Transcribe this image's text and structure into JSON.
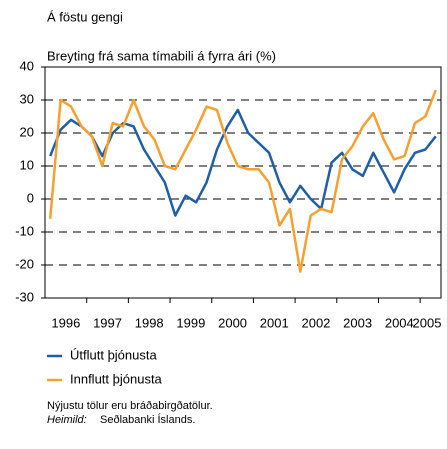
{
  "chart_data": {
    "type": "line",
    "title": "Á föstu gengi",
    "subtitle": "Breyting frá sama tímabili á fyrra ári (%)",
    "categories": [
      "1996",
      null,
      null,
      null,
      "1997",
      null,
      null,
      null,
      "1998",
      null,
      null,
      null,
      "1999",
      null,
      null,
      null,
      "2000",
      null,
      null,
      null,
      "2001",
      null,
      null,
      null,
      "2002",
      null,
      null,
      null,
      "2003",
      null,
      null,
      null,
      "2004",
      null,
      null,
      null,
      "2005",
      null
    ],
    "series": [
      {
        "name": "Útflutt þjónusta",
        "color": "#1f5fa8",
        "values": [
          13,
          21,
          24,
          22,
          19,
          13,
          20,
          23,
          22,
          15,
          10,
          5,
          -5,
          1,
          -1,
          5,
          15,
          22,
          27,
          20,
          17,
          14,
          5,
          -1,
          4,
          0,
          -3,
          11,
          14,
          9,
          7,
          14,
          8,
          2,
          9,
          14,
          15,
          19
        ]
      },
      {
        "name": "Innflutt þjónusta",
        "color": "#f5a030",
        "values": [
          -6,
          30,
          28,
          22,
          19,
          10,
          23,
          22,
          30,
          22,
          18,
          10,
          9,
          15,
          21,
          28,
          27,
          17,
          10,
          9,
          9,
          5,
          -8,
          -3,
          -22,
          -5,
          -3,
          -4,
          12,
          16,
          22,
          26,
          18,
          12,
          13,
          23,
          25,
          33
        ]
      }
    ],
    "ylim": [
      -30,
      40
    ],
    "yticks": [
      -30,
      -20,
      -10,
      0,
      10,
      20,
      30,
      40
    ],
    "grid": true,
    "notes": [
      "Nýjustu tölur eru bráðabirgðatölur."
    ],
    "source_label": "Heimild:",
    "source": "Seðlabanki Íslands."
  }
}
